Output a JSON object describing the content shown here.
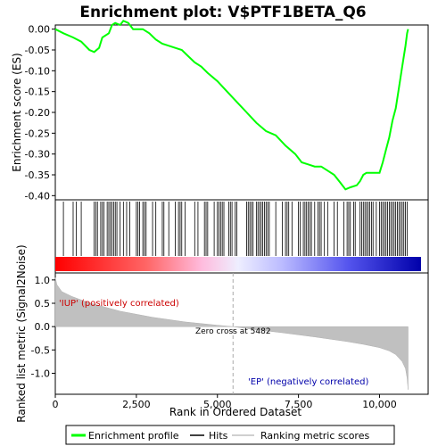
{
  "chart_data": {
    "type": "line",
    "title": "Enrichment plot: V$PTF1BETA_Q6",
    "xlabel": "Rank in Ordered Dataset",
    "xlim": [
      0,
      11500
    ],
    "x_ticks": [
      0,
      2500,
      5000,
      7500,
      10000
    ],
    "x_tick_labels": [
      "0",
      "2,500",
      "5,000",
      "7,500",
      "10,000"
    ],
    "top_panel": {
      "ylabel": "Enrichment score (ES)",
      "ylim": [
        -0.41,
        0.01
      ],
      "y_ticks": [
        0.0,
        -0.05,
        -0.1,
        -0.15,
        -0.2,
        -0.25,
        -0.3,
        -0.35,
        -0.4
      ],
      "y_tick_labels": [
        "0.00",
        "-0.05",
        "-0.10",
        "-0.15",
        "-0.20",
        "-0.25",
        "-0.30",
        "-0.35",
        "-0.40"
      ],
      "series": {
        "name": "Enrichment profile",
        "color": "#00ff00",
        "x": [
          0,
          250,
          550,
          800,
          1050,
          1200,
          1350,
          1450,
          1650,
          1750,
          1850,
          2000,
          2100,
          2250,
          2400,
          2550,
          2700,
          2900,
          3100,
          3300,
          3500,
          3700,
          3900,
          4100,
          4300,
          4500,
          4700,
          5000,
          5300,
          5600,
          5900,
          6200,
          6500,
          6800,
          7100,
          7400,
          7600,
          7800,
          8000,
          8200,
          8400,
          8600,
          8800,
          8950,
          9100,
          9300,
          9400,
          9500,
          9600,
          9800,
          10000,
          10100,
          10200,
          10300,
          10400,
          10500,
          10600,
          10700,
          10800,
          10850,
          10880
        ],
        "y": [
          0.0,
          -0.01,
          -0.02,
          -0.03,
          -0.05,
          -0.055,
          -0.045,
          -0.02,
          -0.01,
          0.01,
          0.015,
          0.01,
          0.02,
          0.015,
          0.0,
          0.0,
          0.0,
          -0.01,
          -0.025,
          -0.035,
          -0.04,
          -0.045,
          -0.05,
          -0.065,
          -0.08,
          -0.09,
          -0.105,
          -0.125,
          -0.15,
          -0.175,
          -0.2,
          -0.225,
          -0.245,
          -0.255,
          -0.28,
          -0.3,
          -0.32,
          -0.325,
          -0.33,
          -0.33,
          -0.34,
          -0.35,
          -0.37,
          -0.385,
          -0.38,
          -0.375,
          -0.365,
          -0.35,
          -0.345,
          -0.345,
          -0.345,
          -0.32,
          -0.29,
          -0.26,
          -0.22,
          -0.19,
          -0.14,
          -0.09,
          -0.04,
          -0.01,
          0.0
        ]
      },
      "hits": [
        250,
        550,
        650,
        800,
        1200,
        1250,
        1300,
        1400,
        1450,
        1500,
        1600,
        1650,
        1700,
        1750,
        1800,
        1850,
        1900,
        2000,
        2100,
        2200,
        2300,
        2500,
        2550,
        2600,
        2700,
        2750,
        2800,
        3000,
        3100,
        3300,
        3350,
        3500,
        3700,
        3800,
        3850,
        3900,
        4000,
        4300,
        4400,
        4600,
        4650,
        4700,
        4900,
        5000,
        5050,
        5100,
        5150,
        5200,
        5350,
        5400,
        5450,
        5550,
        5600,
        5900,
        5950,
        6000,
        6050,
        6100,
        6200,
        6250,
        6300,
        6350,
        6400,
        6450,
        6500,
        6550,
        6600,
        6800,
        7000,
        7100,
        7150,
        7200,
        7300,
        7500,
        7550,
        7650,
        7700,
        7750,
        7800,
        7850,
        7900,
        8000,
        8100,
        8150,
        8200,
        8300,
        8400,
        8600,
        8700,
        8900,
        9000,
        9050,
        9100,
        9200,
        9250,
        9400,
        9450,
        9500,
        9550,
        9600,
        9650,
        9700,
        9750,
        9800,
        9900,
        10000,
        10050,
        10100,
        10150,
        10200,
        10250,
        10300,
        10350,
        10400,
        10450,
        10500,
        10550,
        10600,
        10650,
        10700,
        10750,
        10800,
        10850
      ]
    },
    "bottom_panel": {
      "ylabel": "Ranked list metric (Signal2Noise)",
      "ylim": [
        -1.45,
        1.15
      ],
      "y_ticks": [
        1.0,
        0.5,
        0.0,
        -0.5,
        -1.0
      ],
      "y_tick_labels": [
        "1.0",
        "0.5",
        "0.0",
        "-0.5",
        "-1.0"
      ],
      "series": {
        "name": "Ranking metric scores",
        "color": "#c0c0c0",
        "x": [
          0,
          50,
          200,
          500,
          1000,
          2000,
          3000,
          4000,
          5000,
          5482,
          6000,
          7000,
          8000,
          9000,
          9500,
          10000,
          10300,
          10500,
          10700,
          10800,
          10850,
          10880
        ],
        "y": [
          1.05,
          0.9,
          0.75,
          0.65,
          0.52,
          0.33,
          0.2,
          0.1,
          0.03,
          0.0,
          -0.05,
          -0.13,
          -0.22,
          -0.32,
          -0.38,
          -0.45,
          -0.52,
          -0.6,
          -0.75,
          -0.9,
          -1.1,
          -1.35
        ]
      },
      "zero_cross_rank": 5482,
      "annotations": {
        "positive": "'IUP' (positively correlated)",
        "zero_cross": "Zero cross at 5482",
        "negative": "'EP' (negatively correlated)"
      },
      "positive_color": "#cc0000",
      "negative_color": "#0000aa"
    },
    "legend": {
      "placement": "bottom",
      "entries": [
        {
          "label": "Enrichment profile",
          "color": "#00ff00"
        },
        {
          "label": "Hits",
          "color": "#000000"
        },
        {
          "label": "Ranking metric scores",
          "color": "#c0c0c0"
        }
      ]
    },
    "grid": false
  }
}
